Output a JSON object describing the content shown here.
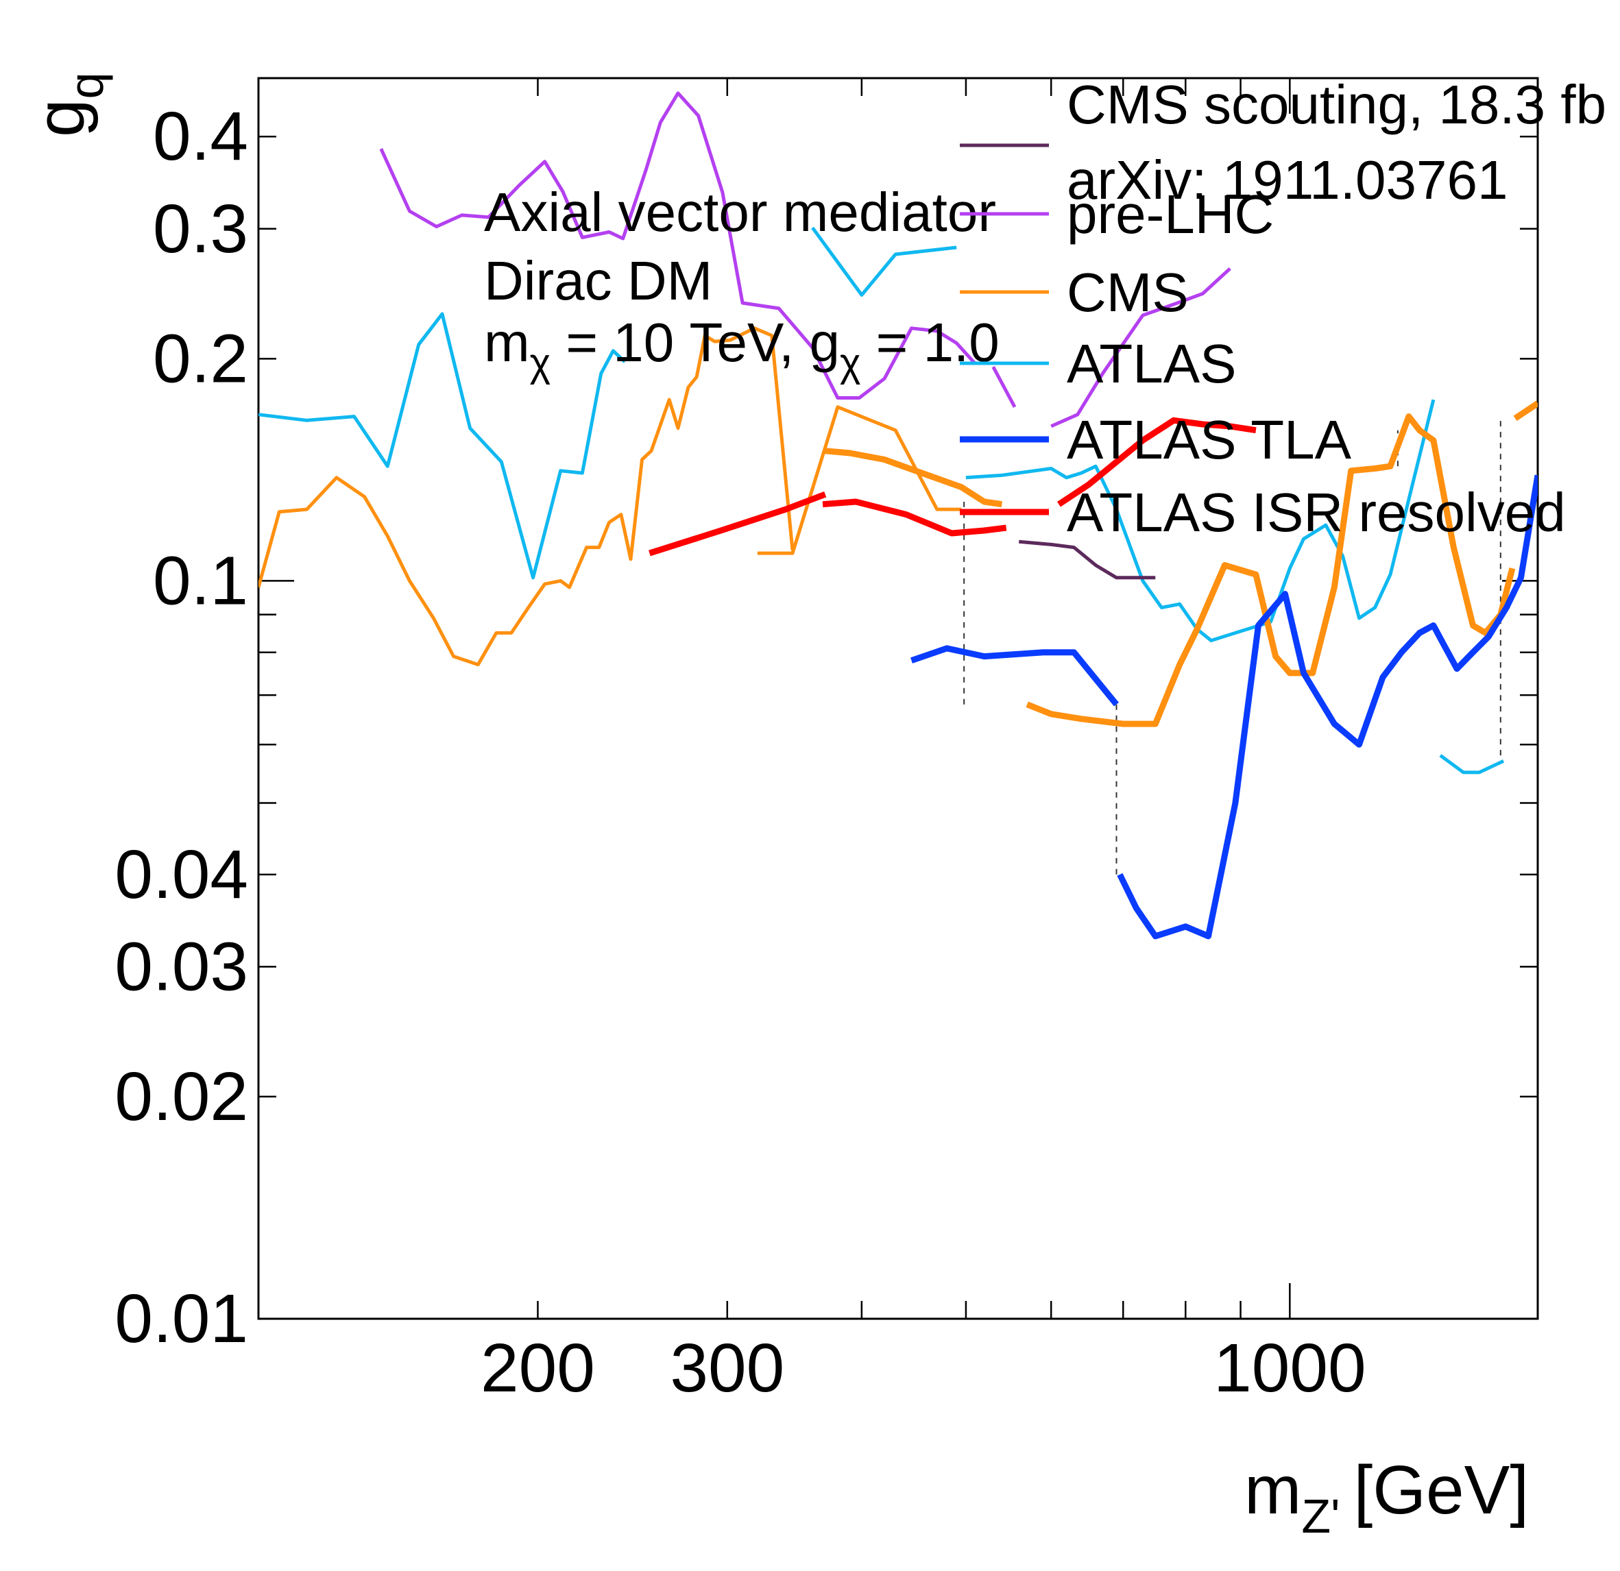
{
  "chart_data": {
    "type": "line",
    "xlabel": "m",
    "xlabel_sub": "Z'",
    "xlabel_unit": "[GeV]",
    "ylabel": "g",
    "ylabel_sub": "q",
    "x_scale": "log",
    "y_scale": "log",
    "xlim": [
      110,
      1700
    ],
    "ylim": [
      0.01,
      0.48
    ],
    "x_tick_labels": [
      {
        "value": 200,
        "label": "200"
      },
      {
        "value": 300,
        "label": "300"
      },
      {
        "value": 1000,
        "label": "1000"
      }
    ],
    "y_tick_labels": [
      {
        "value": 0.01,
        "label": "0.01"
      },
      {
        "value": 0.02,
        "label": "0.02"
      },
      {
        "value": 0.03,
        "label": "0.03"
      },
      {
        "value": 0.04,
        "label": "0.04"
      },
      {
        "value": 0.1,
        "label": "0.1"
      },
      {
        "value": 0.2,
        "label": "0.2"
      },
      {
        "value": 0.3,
        "label": "0.3"
      },
      {
        "value": 0.4,
        "label": "0.4"
      }
    ],
    "annotation": {
      "line1": "Axial vector mediator",
      "line2": "Dirac DM",
      "line3_m": "m",
      "line3_chi": "χ",
      "line3_mid": " = 10 TeV, g",
      "line3_chi2": "χ",
      "line3_end": " = 1.0"
    },
    "legend": {
      "placement": "top-right",
      "entries": [
        {
          "label": "CMS scouting, 18.3 fb",
          "label2": "arXiv: 1911.03761",
          "color": "#5c2a5c",
          "width": 5
        },
        {
          "label": "pre-LHC",
          "color": "#b440f0",
          "width": 5
        },
        {
          "label": "CMS",
          "color": "#ff9010",
          "width": 5
        },
        {
          "label": "ATLAS",
          "color": "#10b8f0",
          "width": 5
        },
        {
          "label": "ATLAS TLA",
          "color": "#0a3cff",
          "width": 9
        },
        {
          "label": "ATLAS ISR resolved",
          "color": "#ff0000",
          "width": 9
        }
      ]
    },
    "series": [
      {
        "key": "pre-LHC",
        "color": "#b440f0",
        "width": 5,
        "segments": [
          [
            [
              143,
              0.385
            ],
            [
              152,
              0.317
            ],
            [
              161,
              0.302
            ],
            [
              170,
              0.313
            ],
            [
              180,
              0.311
            ],
            [
              192,
              0.343
            ],
            [
              203,
              0.37
            ],
            [
              211,
              0.337
            ],
            [
              220,
              0.292
            ],
            [
              233,
              0.297
            ],
            [
              240,
              0.291
            ],
            [
              252,
              0.36
            ],
            [
              260,
              0.418
            ],
            [
              270,
              0.458
            ],
            [
              282,
              0.427
            ],
            [
              297,
              0.336
            ],
            [
              310,
              0.238
            ],
            [
              335,
              0.234
            ],
            [
              360,
              0.207
            ],
            [
              380,
              0.177
            ],
            [
              398,
              0.177
            ],
            [
              420,
              0.188
            ],
            [
              445,
              0.22
            ],
            [
              470,
              0.218
            ],
            [
              490,
              0.21
            ],
            [
              510,
              0.197
            ]
          ],
          [
            [
              530,
              0.195
            ],
            [
              555,
              0.172
            ]
          ],
          [
            [
              600,
              0.162
            ],
            [
              635,
              0.168
            ],
            [
              670,
              0.191
            ],
            [
              730,
              0.229
            ],
            [
              780,
              0.237
            ],
            [
              830,
              0.245
            ],
            [
              880,
              0.265
            ]
          ]
        ]
      },
      {
        "key": "CMS-thin",
        "color": "#ff9010",
        "width": 5,
        "segments": [
          [
            [
              110,
              0.098
            ],
            [
              115,
              0.124
            ],
            [
              122,
              0.125
            ],
            [
              130,
              0.138
            ],
            [
              138,
              0.13
            ],
            [
              145,
              0.115
            ],
            [
              152,
              0.1
            ],
            [
              160,
              0.089
            ],
            [
              167,
              0.079
            ],
            [
              176,
              0.077
            ],
            [
              183,
              0.085
            ],
            [
              189,
              0.085
            ],
            [
              196,
              0.092
            ],
            [
              203,
              0.099
            ],
            [
              210,
              0.1
            ],
            [
              214,
              0.098
            ],
            [
              222,
              0.111
            ],
            [
              228,
              0.111
            ],
            [
              233,
              0.12
            ],
            [
              239,
              0.123
            ],
            [
              244,
              0.107
            ],
            [
              250,
              0.146
            ],
            [
              255,
              0.15
            ],
            [
              265,
              0.176
            ],
            [
              270,
              0.161
            ],
            [
              276,
              0.183
            ],
            [
              281,
              0.189
            ],
            [
              286,
              0.215
            ],
            [
              292,
              0.211
            ],
            [
              302,
              0.212
            ],
            [
              318,
              0.22
            ],
            [
              330,
              0.215
            ],
            [
              345,
              0.11
            ]
          ],
          [
            [
              320,
              0.109
            ],
            [
              345,
              0.109
            ],
            [
              380,
              0.172
            ],
            [
              430,
              0.16
            ],
            [
              470,
              0.125
            ],
            [
              495,
              0.125
            ]
          ]
        ]
      },
      {
        "key": "ATLAS",
        "color": "#10b8f0",
        "width": 5,
        "segments": [
          [
            [
              110,
              0.168
            ],
            [
              122,
              0.165
            ],
            [
              135,
              0.167
            ],
            [
              145,
              0.143
            ],
            [
              155,
              0.209
            ],
            [
              163,
              0.23
            ],
            [
              173,
              0.161
            ],
            [
              185,
              0.145
            ],
            [
              198,
              0.101
            ],
            [
              210,
              0.141
            ],
            [
              220,
              0.14
            ],
            [
              229,
              0.191
            ],
            [
              235,
              0.205
            ],
            [
              241,
              0.198
            ]
          ],
          [
            [
              360,
              0.301
            ],
            [
              400,
              0.244
            ],
            [
              430,
              0.277
            ],
            [
              490,
              0.283
            ]
          ],
          [
            [
              500,
              0.138
            ],
            [
              540,
              0.139
            ],
            [
              600,
              0.142
            ],
            [
              620,
              0.138
            ],
            [
              640,
              0.14
            ],
            [
              660,
              0.143
            ],
            [
              690,
              0.125
            ],
            [
              730,
              0.1
            ],
            [
              760,
              0.092
            ],
            [
              790,
              0.093
            ],
            [
              820,
              0.086
            ],
            [
              845,
              0.083
            ],
            [
              890,
              0.085
            ],
            [
              960,
              0.088
            ],
            [
              1000,
              0.104
            ],
            [
              1030,
              0.114
            ],
            [
              1080,
              0.119
            ],
            [
              1120,
              0.108
            ],
            [
              1160,
              0.089
            ],
            [
              1200,
              0.092
            ],
            [
              1240,
              0.102
            ],
            [
              1300,
              0.135
            ],
            [
              1360,
              0.176
            ]
          ],
          [
            [
              1380,
              0.058
            ],
            [
              1450,
              0.055
            ],
            [
              1500,
              0.055
            ],
            [
              1580,
              0.057
            ]
          ]
        ]
      },
      {
        "key": "CMS-scouting",
        "color": "#5c2a5c",
        "width": 5,
        "segments": [
          [
            [
              560,
              0.113
            ],
            [
              600,
              0.112
            ],
            [
              630,
              0.111
            ],
            [
              660,
              0.105
            ],
            [
              690,
              0.101
            ],
            [
              730,
              0.101
            ],
            [
              750,
              0.101
            ]
          ]
        ]
      },
      {
        "key": "ATLAS-ISR",
        "color": "#ff0000",
        "width": 9,
        "segments": [
          [
            [
              254,
              0.109
            ],
            [
              296,
              0.117
            ],
            [
              340,
              0.125
            ],
            [
              370,
              0.131
            ]
          ],
          [
            [
              368,
              0.127
            ],
            [
              395,
              0.128
            ],
            [
              440,
              0.123
            ],
            [
              485,
              0.116
            ],
            [
              520,
              0.117
            ],
            [
              545,
              0.118
            ]
          ],
          [
            [
              610,
              0.127
            ],
            [
              650,
              0.135
            ],
            [
              730,
              0.155
            ],
            [
              780,
              0.165
            ],
            [
              830,
              0.163
            ],
            [
              880,
              0.162
            ],
            [
              930,
              0.16
            ]
          ]
        ]
      },
      {
        "key": "CMS-thick",
        "color": "#ff9010",
        "width": 9,
        "segments": [
          [
            [
              370,
              0.15
            ],
            [
              390,
              0.149
            ],
            [
              420,
              0.146
            ],
            [
              455,
              0.14
            ],
            [
              495,
              0.134
            ],
            [
              520,
              0.128
            ],
            [
              540,
              0.127
            ]
          ],
          [
            [
              570,
              0.068
            ],
            [
              600,
              0.066
            ],
            [
              640,
              0.065
            ],
            [
              700,
              0.064
            ],
            [
              750,
              0.064
            ],
            [
              790,
              0.077
            ],
            [
              820,
              0.086
            ],
            [
              870,
              0.105
            ],
            [
              930,
              0.102
            ],
            [
              970,
              0.079
            ],
            [
              1000,
              0.075
            ],
            [
              1050,
              0.075
            ],
            [
              1100,
              0.098
            ],
            [
              1140,
              0.141
            ],
            [
              1200,
              0.142
            ],
            [
              1240,
              0.143
            ],
            [
              1290,
              0.167
            ],
            [
              1320,
              0.16
            ],
            [
              1360,
              0.155
            ],
            [
              1420,
              0.111
            ],
            [
              1480,
              0.087
            ],
            [
              1520,
              0.085
            ],
            [
              1570,
              0.09
            ],
            [
              1610,
              0.104
            ]
          ],
          [
            [
              1620,
              0.166
            ],
            [
              1700,
              0.174
            ]
          ]
        ]
      },
      {
        "key": "ATLAS-TLA",
        "color": "#0a3cff",
        "width": 9,
        "segments": [
          [
            [
              445,
              0.078
            ],
            [
              480,
              0.081
            ],
            [
              520,
              0.079
            ],
            [
              590,
              0.08
            ],
            [
              630,
              0.08
            ],
            [
              690,
              0.068
            ]
          ],
          [
            [
              695,
              0.04
            ],
            [
              720,
              0.036
            ],
            [
              750,
              0.033
            ],
            [
              800,
              0.034
            ],
            [
              840,
              0.033
            ],
            [
              890,
              0.05
            ],
            [
              935,
              0.087
            ],
            [
              990,
              0.096
            ],
            [
              1030,
              0.075
            ],
            [
              1100,
              0.064
            ],
            [
              1160,
              0.06
            ],
            [
              1220,
              0.074
            ],
            [
              1270,
              0.08
            ],
            [
              1320,
              0.085
            ],
            [
              1360,
              0.087
            ],
            [
              1390,
              0.082
            ],
            [
              1430,
              0.076
            ],
            [
              1480,
              0.08
            ],
            [
              1530,
              0.084
            ],
            [
              1590,
              0.092
            ],
            [
              1640,
              0.101
            ],
            [
              1700,
              0.139
            ]
          ]
        ]
      }
    ],
    "dashed_connectors": [
      [
        [
          498,
          0.068
        ],
        [
          498,
          0.128
        ]
      ],
      [
        [
          690,
          0.04
        ],
        [
          690,
          0.068
        ]
      ],
      [
        [
          1570,
          0.058
        ],
        [
          1570,
          0.166
        ]
      ],
      [
        [
          1260,
          0.143
        ],
        [
          1260,
          0.16
        ]
      ]
    ]
  }
}
